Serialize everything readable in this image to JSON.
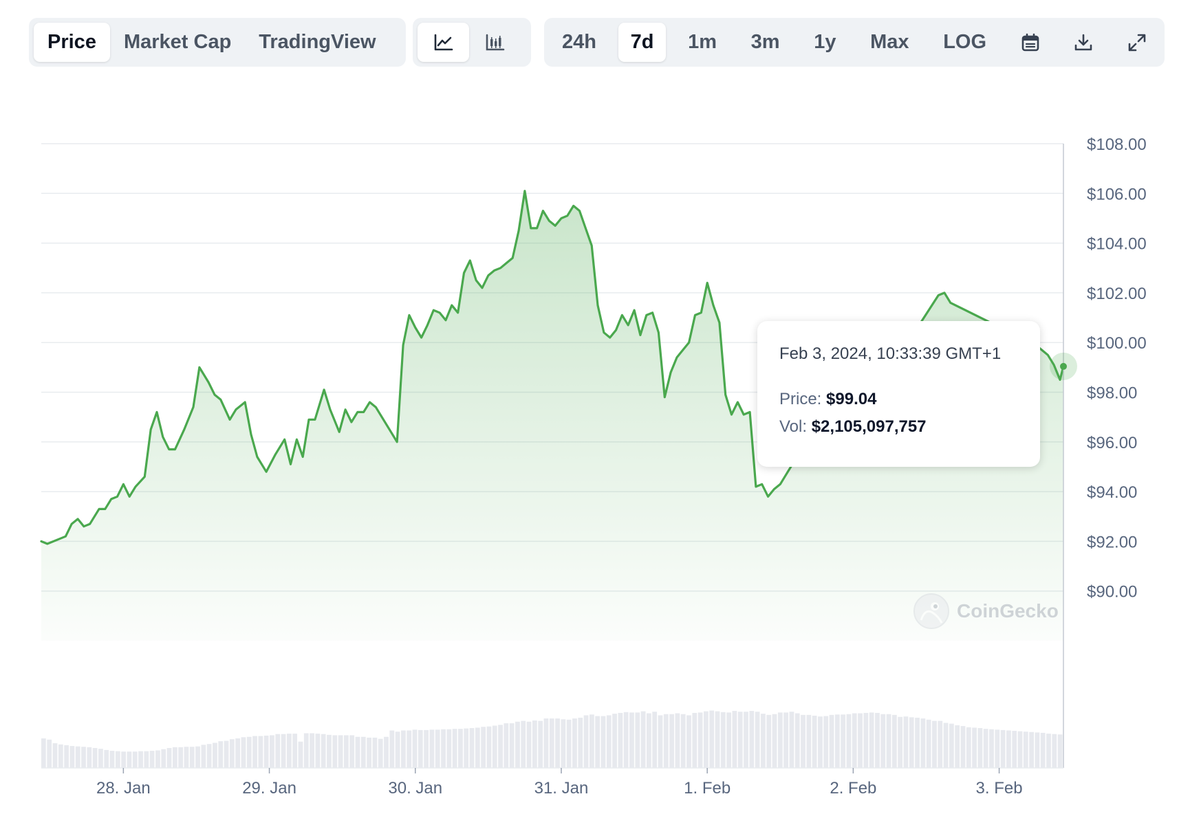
{
  "toolbar": {
    "views": [
      {
        "label": "Price",
        "active": true
      },
      {
        "label": "Market Cap",
        "active": false
      },
      {
        "label": "TradingView",
        "active": false
      }
    ],
    "chart_types": [
      {
        "icon": "line-chart-icon",
        "active": true
      },
      {
        "icon": "candlestick-chart-icon",
        "active": false
      }
    ],
    "ranges": [
      {
        "label": "24h",
        "active": false
      },
      {
        "label": "7d",
        "active": true
      },
      {
        "label": "1m",
        "active": false
      },
      {
        "label": "3m",
        "active": false
      },
      {
        "label": "1y",
        "active": false
      },
      {
        "label": "Max",
        "active": false
      },
      {
        "label": "LOG",
        "active": false
      }
    ],
    "tools": [
      "calendar-icon",
      "download-icon",
      "expand-icon"
    ]
  },
  "tooltip": {
    "date": "Feb 3, 2024, 10:33:39 GMT+1",
    "price_label": "Price:",
    "price_value": "$99.04",
    "vol_label": "Vol:",
    "vol_value": "$2,105,097,757"
  },
  "watermark": "CoinGecko",
  "colors": {
    "line": "#4aa84e",
    "area": "#4aa84e",
    "volume": "#e7e9ee",
    "grid": "#e8ecef",
    "axis_text": "#58667e"
  },
  "chart_data": {
    "type": "area",
    "y_axis_side": "right",
    "ylim": [
      88.0,
      108.0
    ],
    "yticks": [
      "$108.00",
      "$106.00",
      "$104.00",
      "$102.00",
      "$100.00",
      "$98.00",
      "$96.00",
      "$94.00",
      "$92.00",
      "$90.00"
    ],
    "ytick_values": [
      108,
      106,
      104,
      102,
      100,
      98,
      96,
      94,
      92,
      90
    ],
    "xlim": [
      "2024-01-27T10:30",
      "2024-02-03T10:34"
    ],
    "xticks": [
      {
        "label": "28. Jan",
        "date": "2024-01-28T00:00"
      },
      {
        "label": "29. Jan",
        "date": "2024-01-29T00:00"
      },
      {
        "label": "30. Jan",
        "date": "2024-01-30T00:00"
      },
      {
        "label": "31. Jan",
        "date": "2024-01-31T00:00"
      },
      {
        "label": "1. Feb",
        "date": "2024-02-01T00:00"
      },
      {
        "label": "2. Feb",
        "date": "2024-02-02T00:00"
      },
      {
        "label": "3. Feb",
        "date": "2024-02-03T00:00"
      }
    ],
    "grid": true,
    "price_series": {
      "name": "Price",
      "points": [
        [
          "2024-01-27T10:30",
          92.0
        ],
        [
          "2024-01-27T11:30",
          91.9
        ],
        [
          "2024-01-27T13:30",
          92.1
        ],
        [
          "2024-01-27T14:30",
          92.2
        ],
        [
          "2024-01-27T15:30",
          92.7
        ],
        [
          "2024-01-27T16:30",
          92.9
        ],
        [
          "2024-01-27T17:30",
          92.6
        ],
        [
          "2024-01-27T18:30",
          92.7
        ],
        [
          "2024-01-27T20:00",
          93.3
        ],
        [
          "2024-01-27T21:00",
          93.3
        ],
        [
          "2024-01-27T22:00",
          93.7
        ],
        [
          "2024-01-27T23:00",
          93.8
        ],
        [
          "2024-01-28T00:00",
          94.3
        ],
        [
          "2024-01-28T01:00",
          93.8
        ],
        [
          "2024-01-28T02:00",
          94.2
        ],
        [
          "2024-01-28T03:30",
          94.6
        ],
        [
          "2024-01-28T04:30",
          96.5
        ],
        [
          "2024-01-28T05:30",
          97.2
        ],
        [
          "2024-01-28T06:30",
          96.2
        ],
        [
          "2024-01-28T07:30",
          95.7
        ],
        [
          "2024-01-28T08:30",
          95.7
        ],
        [
          "2024-01-28T10:00",
          96.5
        ],
        [
          "2024-01-28T11:30",
          97.4
        ],
        [
          "2024-01-28T12:30",
          99.0
        ],
        [
          "2024-01-28T14:00",
          98.4
        ],
        [
          "2024-01-28T15:00",
          97.9
        ],
        [
          "2024-01-28T16:00",
          97.7
        ],
        [
          "2024-01-28T17:30",
          96.9
        ],
        [
          "2024-01-28T18:30",
          97.3
        ],
        [
          "2024-01-28T20:00",
          97.6
        ],
        [
          "2024-01-28T21:00",
          96.3
        ],
        [
          "2024-01-28T22:00",
          95.4
        ],
        [
          "2024-01-28T23:30",
          94.8
        ],
        [
          "2024-01-29T01:00",
          95.5
        ],
        [
          "2024-01-29T02:30",
          96.1
        ],
        [
          "2024-01-29T03:30",
          95.1
        ],
        [
          "2024-01-29T04:30",
          96.1
        ],
        [
          "2024-01-29T05:30",
          95.4
        ],
        [
          "2024-01-29T06:30",
          96.9
        ],
        [
          "2024-01-29T07:30",
          96.9
        ],
        [
          "2024-01-29T09:00",
          98.1
        ],
        [
          "2024-01-29T10:00",
          97.3
        ],
        [
          "2024-01-29T11:30",
          96.4
        ],
        [
          "2024-01-29T12:30",
          97.3
        ],
        [
          "2024-01-29T13:30",
          96.8
        ],
        [
          "2024-01-29T14:30",
          97.2
        ],
        [
          "2024-01-29T15:30",
          97.2
        ],
        [
          "2024-01-29T16:30",
          97.6
        ],
        [
          "2024-01-29T17:30",
          97.4
        ],
        [
          "2024-01-29T18:30",
          97.0
        ],
        [
          "2024-01-29T20:00",
          96.4
        ],
        [
          "2024-01-29T21:00",
          96.0
        ],
        [
          "2024-01-29T22:00",
          99.9
        ],
        [
          "2024-01-29T23:00",
          101.1
        ],
        [
          "2024-01-30T00:00",
          100.6
        ],
        [
          "2024-01-30T01:00",
          100.2
        ],
        [
          "2024-01-30T02:00",
          100.7
        ],
        [
          "2024-01-30T03:00",
          101.3
        ],
        [
          "2024-01-30T04:00",
          101.2
        ],
        [
          "2024-01-30T05:00",
          100.9
        ],
        [
          "2024-01-30T06:00",
          101.5
        ],
        [
          "2024-01-30T07:00",
          101.2
        ],
        [
          "2024-01-30T08:00",
          102.8
        ],
        [
          "2024-01-30T09:00",
          103.3
        ],
        [
          "2024-01-30T10:00",
          102.5
        ],
        [
          "2024-01-30T11:00",
          102.2
        ],
        [
          "2024-01-30T12:00",
          102.7
        ],
        [
          "2024-01-30T13:00",
          102.9
        ],
        [
          "2024-01-30T14:00",
          103.0
        ],
        [
          "2024-01-30T15:00",
          103.2
        ],
        [
          "2024-01-30T16:00",
          103.4
        ],
        [
          "2024-01-30T17:00",
          104.5
        ],
        [
          "2024-01-30T18:00",
          106.1
        ],
        [
          "2024-01-30T19:00",
          104.6
        ],
        [
          "2024-01-30T20:00",
          104.6
        ],
        [
          "2024-01-30T21:00",
          105.3
        ],
        [
          "2024-01-30T22:00",
          104.9
        ],
        [
          "2024-01-30T23:00",
          104.7
        ],
        [
          "2024-01-31T00:00",
          105.0
        ],
        [
          "2024-01-31T01:00",
          105.1
        ],
        [
          "2024-01-31T02:00",
          105.5
        ],
        [
          "2024-01-31T03:00",
          105.3
        ],
        [
          "2024-01-31T04:00",
          104.6
        ],
        [
          "2024-01-31T05:00",
          103.9
        ],
        [
          "2024-01-31T06:00",
          101.5
        ],
        [
          "2024-01-31T07:00",
          100.4
        ],
        [
          "2024-01-31T08:00",
          100.2
        ],
        [
          "2024-01-31T09:00",
          100.5
        ],
        [
          "2024-01-31T10:00",
          101.1
        ],
        [
          "2024-01-31T11:00",
          100.7
        ],
        [
          "2024-01-31T12:00",
          101.3
        ],
        [
          "2024-01-31T13:00",
          100.3
        ],
        [
          "2024-01-31T14:00",
          101.1
        ],
        [
          "2024-01-31T15:00",
          101.2
        ],
        [
          "2024-01-31T16:00",
          100.4
        ],
        [
          "2024-01-31T17:00",
          97.8
        ],
        [
          "2024-01-31T18:00",
          98.8
        ],
        [
          "2024-01-31T19:00",
          99.4
        ],
        [
          "2024-01-31T20:00",
          99.7
        ],
        [
          "2024-01-31T21:00",
          100.0
        ],
        [
          "2024-01-31T22:00",
          101.1
        ],
        [
          "2024-01-31T23:00",
          101.2
        ],
        [
          "2024-02-01T00:00",
          102.4
        ],
        [
          "2024-02-01T01:00",
          101.5
        ],
        [
          "2024-02-01T02:00",
          100.8
        ],
        [
          "2024-02-01T03:00",
          97.9
        ],
        [
          "2024-02-01T04:00",
          97.1
        ],
        [
          "2024-02-01T05:00",
          97.6
        ],
        [
          "2024-02-01T06:00",
          97.1
        ],
        [
          "2024-02-01T07:00",
          97.2
        ],
        [
          "2024-02-01T08:00",
          94.2
        ],
        [
          "2024-02-01T09:00",
          94.3
        ],
        [
          "2024-02-01T10:00",
          93.8
        ],
        [
          "2024-02-01T11:00",
          94.1
        ],
        [
          "2024-02-01T12:00",
          94.3
        ],
        [
          "2024-02-01T13:00",
          94.7
        ],
        [
          "2024-02-01T14:00",
          95.1
        ],
        [
          "2024-02-01T15:00",
          95.1
        ],
        [
          "2024-02-01T16:00",
          95.6
        ],
        [
          "2024-02-01T17:00",
          96.3
        ],
        [
          "2024-02-01T18:00",
          95.4
        ],
        [
          "2024-02-01T19:00",
          95.2
        ],
        [
          "2024-02-01T20:00",
          95.5
        ],
        [
          "2024-02-01T21:00",
          96.7
        ],
        [
          "2024-02-01T22:00",
          96.2
        ],
        [
          "2024-02-01T23:00",
          96.4
        ],
        [
          "2024-02-02T00:00",
          96.6
        ],
        [
          "2024-02-02T14:00",
          101.9
        ],
        [
          "2024-02-02T15:00",
          102.0
        ],
        [
          "2024-02-02T16:00",
          101.6
        ],
        [
          "2024-02-03T06:00",
          99.9
        ],
        [
          "2024-02-03T07:00",
          99.7
        ],
        [
          "2024-02-03T08:00",
          99.5
        ],
        [
          "2024-02-03T09:00",
          99.1
        ],
        [
          "2024-02-03T10:00",
          98.5
        ],
        [
          "2024-02-03T10:34",
          99.04
        ]
      ]
    },
    "volume_series": {
      "name": "Vol",
      "interval_hours": 1,
      "relative_heights": [
        0.74,
        0.71,
        0.62,
        0.59,
        0.57,
        0.55,
        0.54,
        0.53,
        0.52,
        0.5,
        0.48,
        0.45,
        0.43,
        0.42,
        0.41,
        0.41,
        0.41,
        0.42,
        0.42,
        0.43,
        0.44,
        0.47,
        0.5,
        0.52,
        0.52,
        0.53,
        0.53,
        0.54,
        0.58,
        0.6,
        0.63,
        0.67,
        0.68,
        0.72,
        0.74,
        0.77,
        0.78,
        0.8,
        0.8,
        0.81,
        0.82,
        0.85,
        0.85,
        0.86,
        0.86,
        0.66,
        0.87,
        0.87,
        0.86,
        0.85,
        0.83,
        0.82,
        0.82,
        0.82,
        0.82,
        0.78,
        0.78,
        0.76,
        0.76,
        0.73,
        0.78,
        0.94,
        0.91,
        0.94,
        0.94,
        0.96,
        0.95,
        0.95,
        0.96,
        0.96,
        0.97,
        0.97,
        0.98,
        0.98,
        0.99,
        1.0,
        1.01,
        1.03,
        1.04,
        1.06,
        1.08,
        1.12,
        1.12,
        1.16,
        1.18,
        1.16,
        1.19,
        1.18,
        1.24,
        1.24,
        1.24,
        1.22,
        1.21,
        1.24,
        1.26,
        1.32,
        1.34,
        1.3,
        1.3,
        1.32,
        1.36,
        1.38,
        1.4,
        1.39,
        1.39,
        1.42,
        1.37,
        1.41,
        1.32,
        1.35,
        1.35,
        1.37,
        1.35,
        1.32,
        1.38,
        1.39,
        1.42,
        1.44,
        1.42,
        1.4,
        1.39,
        1.43,
        1.41,
        1.41,
        1.43,
        1.41,
        1.36,
        1.33,
        1.35,
        1.39,
        1.39,
        1.41,
        1.37,
        1.33,
        1.33,
        1.31,
        1.29,
        1.3,
        1.33,
        1.34,
        1.34,
        1.35,
        1.37,
        1.37,
        1.38,
        1.39,
        1.38,
        1.35,
        1.35,
        1.33,
        1.28,
        1.29,
        1.27,
        1.26,
        1.24,
        1.21,
        1.18,
        1.18,
        1.13,
        1.11,
        1.07,
        1.05,
        1.02,
        1.01,
        1.0,
        0.98,
        0.97,
        0.96,
        0.95,
        0.94,
        0.93,
        0.92,
        0.91,
        0.9,
        0.89,
        0.88,
        0.86,
        0.85,
        0.84
      ]
    }
  }
}
